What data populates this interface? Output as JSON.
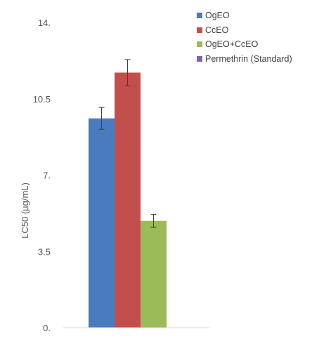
{
  "chart_data": {
    "type": "bar",
    "title": "",
    "xlabel": "",
    "ylabel": "LC50 (µg/mL)",
    "ylim": [
      0,
      14
    ],
    "yticks": [
      0,
      3.5,
      7,
      10.5,
      14
    ],
    "ytick_labels": [
      "0.",
      "3.5",
      "7.",
      "10.5",
      "14."
    ],
    "grid": false,
    "legend_position": "top-right",
    "series": [
      {
        "name": "OgEO",
        "values": [
          9.6
        ],
        "error": [
          0.5
        ],
        "color": "#4a7bbf"
      },
      {
        "name": "CcEO",
        "values": [
          11.7
        ],
        "error": [
          0.6
        ],
        "color": "#c34f4c"
      },
      {
        "name": "OgEO+CcEO",
        "values": [
          4.9
        ],
        "error": [
          0.3
        ],
        "color": "#9bbb59"
      },
      {
        "name": "Permethrin (Standard)",
        "values": [
          null
        ],
        "error": [
          null
        ],
        "color": "#8064a2"
      }
    ]
  }
}
